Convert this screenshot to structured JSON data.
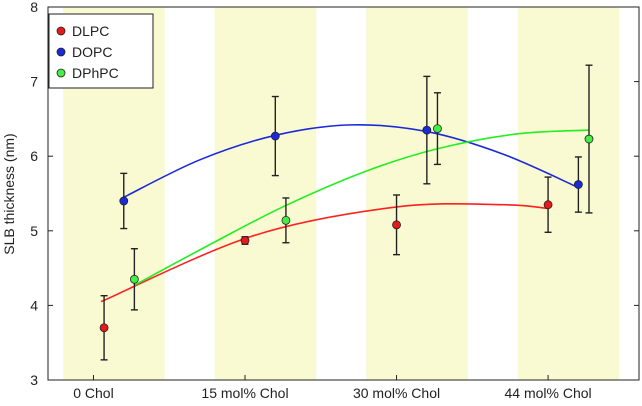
{
  "chart_data": {
    "type": "scatter",
    "title": "",
    "xlabel": "",
    "ylabel": "SLB thickness (nm)",
    "ylim": [
      3,
      8
    ],
    "yticks": [
      3,
      4,
      5,
      6,
      7,
      8
    ],
    "categories": [
      "0 Chol",
      "15 mol% Chol",
      "30 mol% Chol",
      "44 mol% Chol"
    ],
    "band_color": "#fafad2",
    "legend_position": "top-left",
    "series": [
      {
        "name": "DLPC",
        "color": "#e8191b",
        "line_color": "#ff2020",
        "x": [
          0.27,
          1.2,
          2.2,
          3.2
        ],
        "values": [
          3.7,
          4.87,
          5.08,
          5.35
        ],
        "errors": [
          0.43,
          0.05,
          0.4,
          0.37
        ],
        "fit_x": [
          0.25,
          3.2
        ],
        "fit": [
          [
            0.25,
            4.05
          ],
          [
            1.25,
            4.93
          ],
          [
            2.2,
            5.32
          ],
          [
            2.9,
            5.35
          ],
          [
            3.2,
            5.3
          ]
        ]
      },
      {
        "name": "DOPC",
        "color": "#1a2ad8",
        "line_color": "#1a2ad8",
        "x": [
          0.4,
          1.4,
          2.4,
          3.4
        ],
        "values": [
          5.4,
          6.27,
          6.35,
          5.62
        ],
        "errors": [
          0.37,
          0.53,
          0.72,
          0.37
        ],
        "fit": [
          [
            0.4,
            5.45
          ],
          [
            0.9,
            5.95
          ],
          [
            1.4,
            6.28
          ],
          [
            1.9,
            6.42
          ],
          [
            2.4,
            6.33
          ],
          [
            2.9,
            6.03
          ],
          [
            3.4,
            5.58
          ]
        ]
      },
      {
        "name": "DPhPC",
        "color": "#44ee44",
        "line_color": "#22ee22",
        "x": [
          0.47,
          1.47,
          2.47,
          3.47
        ],
        "values": [
          4.35,
          5.14,
          6.37,
          6.23
        ],
        "errors": [
          0.41,
          0.3,
          0.48,
          0.99
        ],
        "fit": [
          [
            0.47,
            4.27
          ],
          [
            1.0,
            4.85
          ],
          [
            1.47,
            5.34
          ],
          [
            2.0,
            5.8
          ],
          [
            2.47,
            6.1
          ],
          [
            3.0,
            6.3
          ],
          [
            3.47,
            6.35
          ]
        ]
      }
    ]
  }
}
